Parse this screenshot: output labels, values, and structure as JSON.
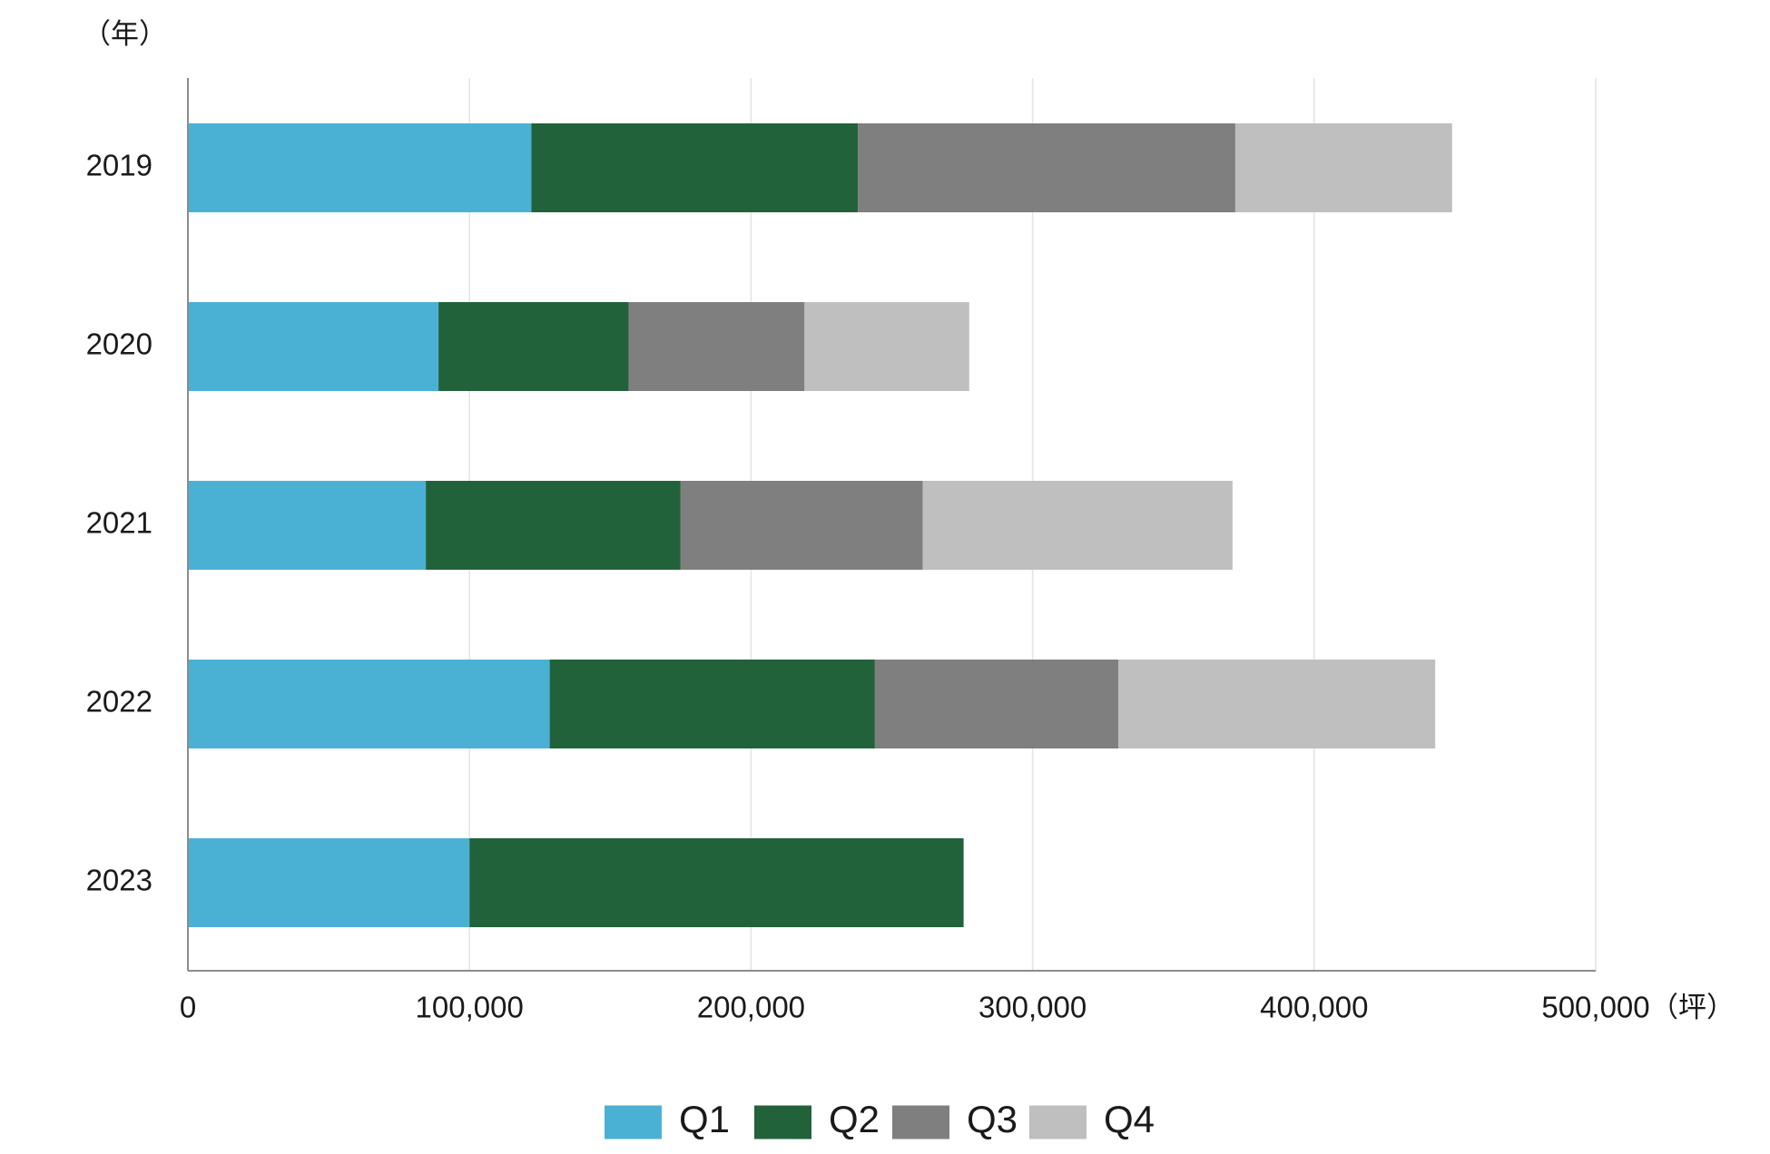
{
  "chart_data": {
    "type": "bar",
    "orientation": "horizontal",
    "stacked": true,
    "categories": [
      "2019",
      "2020",
      "2021",
      "2022",
      "2023"
    ],
    "series": [
      {
        "name": "Q1",
        "color": "#4bb1d4",
        "values": [
          122000,
          89000,
          84500,
          128500,
          100000
        ]
      },
      {
        "name": "Q2",
        "color": "#22623b",
        "values": [
          116000,
          67500,
          90500,
          115500,
          175500
        ]
      },
      {
        "name": "Q3",
        "color": "#7f7f7f",
        "values": [
          134000,
          62500,
          86000,
          86500,
          null
        ]
      },
      {
        "name": "Q4",
        "color": "#bfbfbf",
        "values": [
          77000,
          58500,
          110000,
          112500,
          null
        ]
      }
    ],
    "xlim": [
      0,
      500000
    ],
    "xticks": [
      0,
      100000,
      200000,
      300000,
      400000,
      500000
    ],
    "xtick_labels": [
      "0",
      "100,000",
      "200,000",
      "300,000",
      "400,000",
      "500,000"
    ],
    "x_unit_label": "（坪）",
    "y_unit_label": "（年）",
    "grid": "vertical",
    "legend_position": "bottom-center"
  }
}
